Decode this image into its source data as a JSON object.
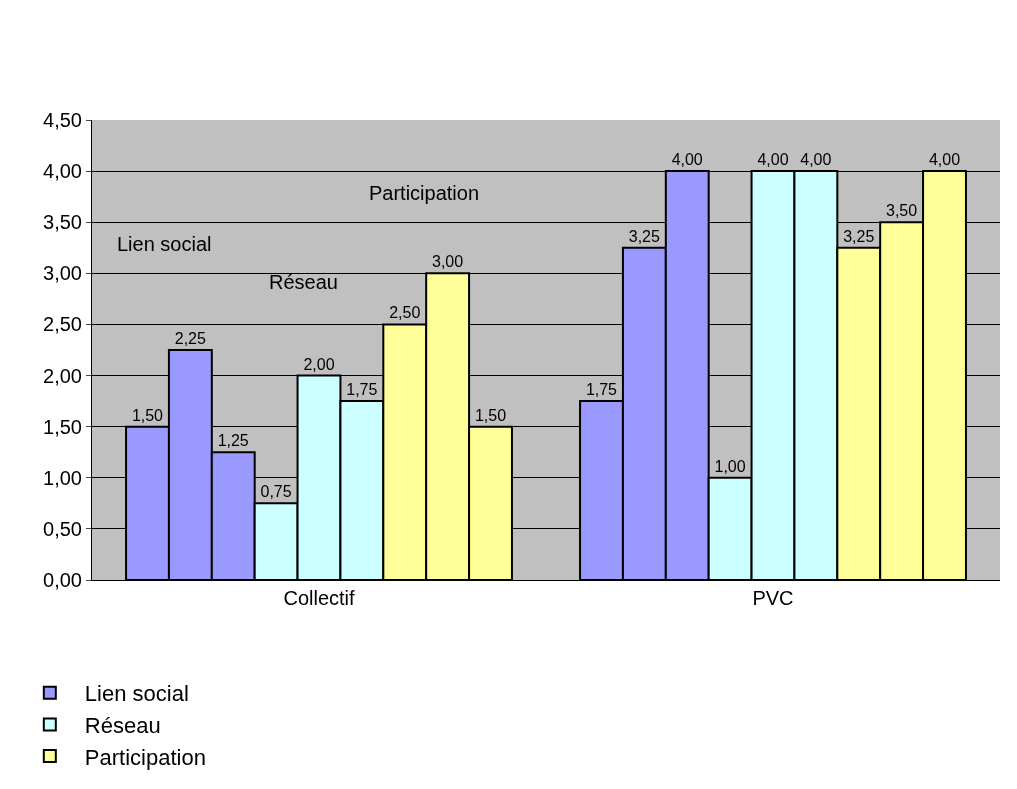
{
  "chart_data": {
    "type": "bar",
    "categories": [
      "Collectif",
      "PVC"
    ],
    "series": [
      {
        "name": "Lien social",
        "color": "#9999ff",
        "values": [
          1.5,
          1.75
        ],
        "value_labels": [
          "1,50",
          "1,75"
        ]
      },
      {
        "color": "#9999ff",
        "values": [
          2.25,
          3.25
        ],
        "value_labels": [
          "2,25",
          "3,25"
        ]
      },
      {
        "color": "#9999ff",
        "values": [
          1.25,
          4.0
        ],
        "value_labels": [
          "1,25",
          "4,00"
        ]
      },
      {
        "name": "Réseau",
        "color": "#ccffff",
        "values": [
          0.75,
          1.0
        ],
        "value_labels": [
          "0,75",
          "1,00"
        ]
      },
      {
        "color": "#ccffff",
        "values": [
          2.0,
          4.0
        ],
        "value_labels": [
          "2,00",
          "4,00"
        ]
      },
      {
        "color": "#ccffff",
        "values": [
          1.75,
          4.0
        ],
        "value_labels": [
          "1,75",
          "4,00"
        ]
      },
      {
        "name": "Participation",
        "color": "#ffff99",
        "values": [
          2.5,
          3.25
        ],
        "value_labels": [
          "2,50",
          "3,25"
        ]
      },
      {
        "color": "#ffff99",
        "values": [
          3.0,
          3.5
        ],
        "value_labels": [
          "3,00",
          "3,50"
        ]
      },
      {
        "color": "#ffff99",
        "values": [
          1.5,
          4.0
        ],
        "value_labels": [
          "1,50",
          "4,00"
        ]
      }
    ],
    "annotations": [
      "Lien social",
      "Réseau",
      "Participation"
    ],
    "ylim": [
      0,
      4.5
    ],
    "yticks": [
      {
        "value": 0,
        "label": "0,00"
      },
      {
        "value": 0.5,
        "label": "0,50"
      },
      {
        "value": 1,
        "label": "1,00"
      },
      {
        "value": 1.5,
        "label": "1,50"
      },
      {
        "value": 2,
        "label": "2,00"
      },
      {
        "value": 2.5,
        "label": "2,50"
      },
      {
        "value": 3,
        "label": "3,00"
      },
      {
        "value": 3.5,
        "label": "3,50"
      },
      {
        "value": 4,
        "label": "4,00"
      },
      {
        "value": 4.5,
        "label": "4,50"
      }
    ],
    "grid": "y",
    "legend": "bottom left"
  }
}
